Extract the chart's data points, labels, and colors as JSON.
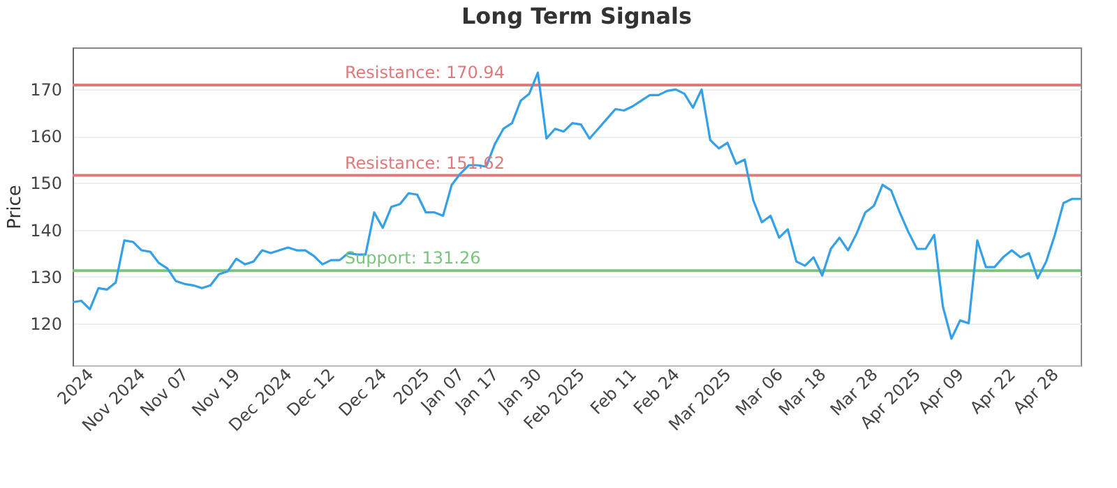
{
  "chart_data": {
    "type": "line",
    "title": "Long Term Signals",
    "ylabel": "Price",
    "categories": [
      null,
      null,
      "2024",
      null,
      null,
      null,
      null,
      null,
      "Nov 2024",
      null,
      null,
      null,
      null,
      "Nov 07",
      null,
      null,
      null,
      null,
      null,
      "Nov 19",
      null,
      null,
      null,
      null,
      null,
      "Dec 2024",
      null,
      null,
      null,
      null,
      "Dec 12",
      null,
      null,
      null,
      null,
      null,
      "Dec 24",
      null,
      null,
      null,
      null,
      "2025",
      null,
      null,
      null,
      "Jan 07",
      null,
      null,
      null,
      "Jan 17",
      null,
      null,
      null,
      null,
      "Jan 30",
      null,
      null,
      null,
      null,
      "Feb 2025",
      null,
      null,
      null,
      null,
      null,
      "Feb 11",
      null,
      null,
      null,
      null,
      "Feb 24",
      null,
      null,
      null,
      null,
      null,
      "Mar 2025",
      null,
      null,
      null,
      null,
      null,
      "Mar 06",
      null,
      null,
      null,
      null,
      "Mar 18",
      null,
      null,
      null,
      null,
      null,
      "Mar 28",
      null,
      null,
      null,
      null,
      "Apr 2025",
      null,
      null,
      null,
      null,
      "Apr 09",
      null,
      null,
      null,
      null,
      null,
      "Apr 22",
      null,
      null,
      null,
      null,
      "Apr 28",
      null,
      null,
      null
    ],
    "series": [
      {
        "color": "#33a0e8",
        "values": [
          124.5,
          124.8,
          123.0,
          127.5,
          127.2,
          128.7,
          137.7,
          137.4,
          135.6,
          135.3,
          132.9,
          131.7,
          129.0,
          128.4,
          128.1,
          127.5,
          128.1,
          130.5,
          131.1,
          133.8,
          132.6,
          133.2,
          135.6,
          135.0,
          135.6,
          136.2,
          135.6,
          135.6,
          134.4,
          132.6,
          133.5,
          133.5,
          135.0,
          134.7,
          134.7,
          143.7,
          140.4,
          144.9,
          145.5,
          147.8,
          147.5,
          143.7,
          143.7,
          143.0,
          149.6,
          152.0,
          153.8,
          153.8,
          153.5,
          158.3,
          161.6,
          162.8,
          167.6,
          169.1,
          173.6,
          159.5,
          161.6,
          161.0,
          162.8,
          162.5,
          159.5,
          161.6,
          163.7,
          165.8,
          165.5,
          166.4,
          167.6,
          168.8,
          168.8,
          169.7,
          170.0,
          169.1,
          166.1,
          170.0,
          159.2,
          157.4,
          158.6,
          154.1,
          155.0,
          146.3,
          141.6,
          143.0,
          138.3,
          140.1,
          133.2,
          132.3,
          134.1,
          130.2,
          135.9,
          138.3,
          135.6,
          139.2,
          143.7,
          145.1,
          149.6,
          148.4,
          143.7,
          139.5,
          135.9,
          135.9,
          138.9,
          123.6,
          116.7,
          120.6,
          120.0,
          137.7,
          132.0,
          132.0,
          134.1,
          135.6,
          134.1,
          135.0,
          129.6,
          133.2,
          138.9,
          145.7,
          146.6,
          146.6
        ]
      }
    ],
    "ylim": [
      111,
      179
    ],
    "yticks": [
      120,
      130,
      140,
      150,
      160,
      170
    ],
    "grid": "y",
    "ref_lines": [
      {
        "axis": "y",
        "value": 170.94,
        "label": "Resistance: 170.94",
        "color": "#e07a7a"
      },
      {
        "axis": "y",
        "value": 151.62,
        "label": "Resistance: 151.62",
        "color": "#e07a7a"
      },
      {
        "axis": "y",
        "value": 131.26,
        "label": "Support: 131.26",
        "color": "#7cc47c"
      }
    ]
  }
}
